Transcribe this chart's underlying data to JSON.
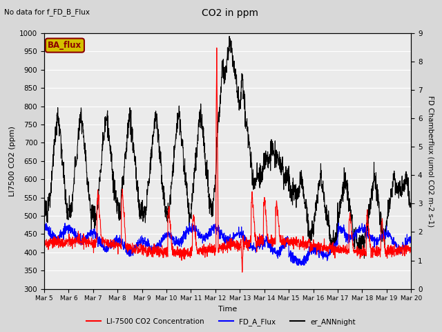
{
  "title": "CO2 in ppm",
  "top_left_text": "No data for f_FD_B_Flux",
  "ylabel_left": "LI7500 CO2 (ppm)",
  "ylabel_right": "FD Chamberflux (umol CO2 m-2 s-1)",
  "xlabel": "Time",
  "ylim_left": [
    300,
    1000
  ],
  "ylim_right": [
    0.0,
    9.0
  ],
  "yticks_left": [
    300,
    350,
    400,
    450,
    500,
    550,
    600,
    650,
    700,
    750,
    800,
    850,
    900,
    950,
    1000
  ],
  "yticks_right": [
    0.0,
    1.0,
    2.0,
    3.0,
    4.0,
    5.0,
    6.0,
    7.0,
    8.0,
    9.0
  ],
  "xtick_labels": [
    "Mar 5",
    "Mar 6",
    "Mar 7",
    "Mar 8",
    "Mar 9",
    "Mar 10",
    "Mar 11",
    "Mar 12",
    "Mar 13",
    "Mar 14",
    "Mar 15",
    "Mar 16",
    "Mar 17",
    "Mar 18",
    "Mar 19",
    "Mar 20"
  ],
  "ba_flux_box_color": "#d4c000",
  "ba_flux_text_color": "#8b0000",
  "legend_entries": [
    {
      "label": "LI-7500 CO2 Concentration",
      "color": "red",
      "lw": 1.5
    },
    {
      "label": "FD_A_Flux",
      "color": "blue",
      "lw": 1.5
    },
    {
      "label": "er_ANNnight",
      "color": "black",
      "lw": 1.5
    }
  ],
  "bg_color": "#d8d8d8",
  "plot_bg_color": "#ebebeb",
  "grid_color": "white",
  "n_points": 2000
}
